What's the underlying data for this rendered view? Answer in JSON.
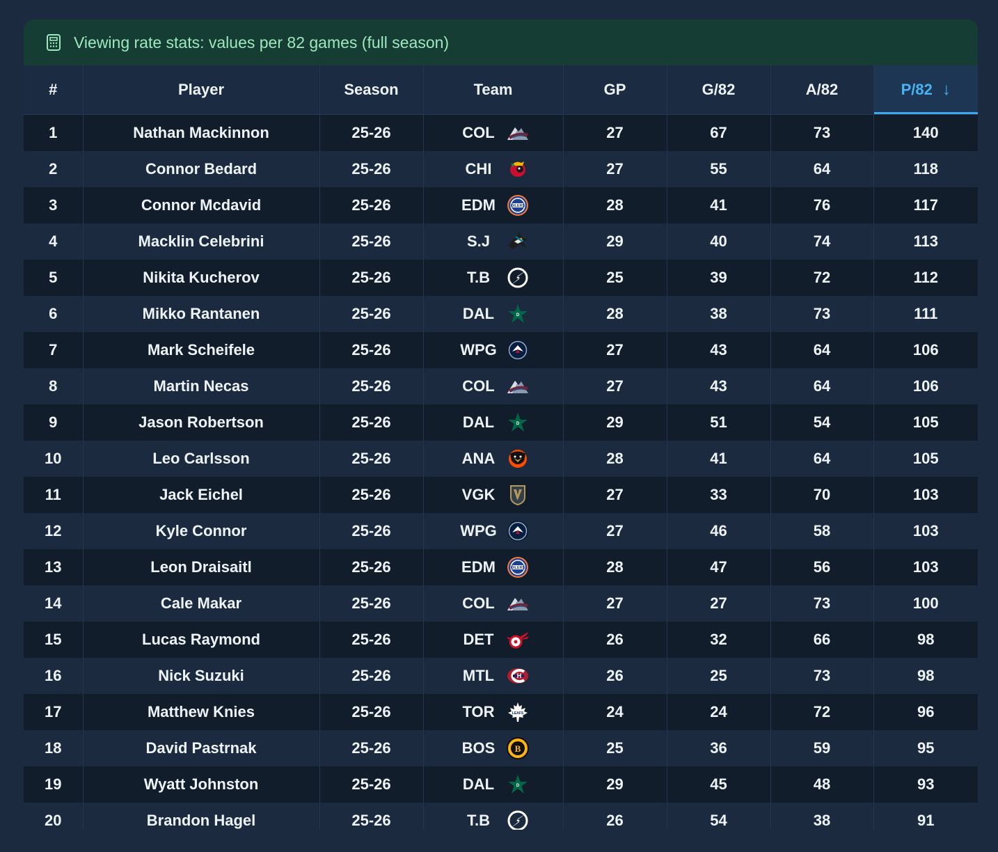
{
  "banner": {
    "icon": "calculator-icon",
    "text": "Viewing rate stats: values per 82 games (full season)"
  },
  "columns": [
    "#",
    "Player",
    "Season",
    "Team",
    "GP",
    "G/82",
    "A/82",
    "P/82"
  ],
  "sort": {
    "column": "P/82",
    "direction": "descending",
    "icon": "arrow-down-icon",
    "accent": "#49b2f0"
  },
  "rows": [
    {
      "rank": "1",
      "player": "Nathan Mackinnon",
      "season": "25-26",
      "team": "COL",
      "gp": "27",
      "g82": "67",
      "a82": "73",
      "p82": "140"
    },
    {
      "rank": "2",
      "player": "Connor Bedard",
      "season": "25-26",
      "team": "CHI",
      "gp": "27",
      "g82": "55",
      "a82": "64",
      "p82": "118"
    },
    {
      "rank": "3",
      "player": "Connor Mcdavid",
      "season": "25-26",
      "team": "EDM",
      "gp": "28",
      "g82": "41",
      "a82": "76",
      "p82": "117"
    },
    {
      "rank": "4",
      "player": "Macklin Celebrini",
      "season": "25-26",
      "team": "S.J",
      "gp": "29",
      "g82": "40",
      "a82": "74",
      "p82": "113"
    },
    {
      "rank": "5",
      "player": "Nikita Kucherov",
      "season": "25-26",
      "team": "T.B",
      "gp": "25",
      "g82": "39",
      "a82": "72",
      "p82": "112"
    },
    {
      "rank": "6",
      "player": "Mikko Rantanen",
      "season": "25-26",
      "team": "DAL",
      "gp": "28",
      "g82": "38",
      "a82": "73",
      "p82": "111"
    },
    {
      "rank": "7",
      "player": "Mark Scheifele",
      "season": "25-26",
      "team": "WPG",
      "gp": "27",
      "g82": "43",
      "a82": "64",
      "p82": "106"
    },
    {
      "rank": "8",
      "player": "Martin Necas",
      "season": "25-26",
      "team": "COL",
      "gp": "27",
      "g82": "43",
      "a82": "64",
      "p82": "106"
    },
    {
      "rank": "9",
      "player": "Jason Robertson",
      "season": "25-26",
      "team": "DAL",
      "gp": "29",
      "g82": "51",
      "a82": "54",
      "p82": "105"
    },
    {
      "rank": "10",
      "player": "Leo Carlsson",
      "season": "25-26",
      "team": "ANA",
      "gp": "28",
      "g82": "41",
      "a82": "64",
      "p82": "105"
    },
    {
      "rank": "11",
      "player": "Jack Eichel",
      "season": "25-26",
      "team": "VGK",
      "gp": "27",
      "g82": "33",
      "a82": "70",
      "p82": "103"
    },
    {
      "rank": "12",
      "player": "Kyle Connor",
      "season": "25-26",
      "team": "WPG",
      "gp": "27",
      "g82": "46",
      "a82": "58",
      "p82": "103"
    },
    {
      "rank": "13",
      "player": "Leon Draisaitl",
      "season": "25-26",
      "team": "EDM",
      "gp": "28",
      "g82": "47",
      "a82": "56",
      "p82": "103"
    },
    {
      "rank": "14",
      "player": "Cale Makar",
      "season": "25-26",
      "team": "COL",
      "gp": "27",
      "g82": "27",
      "a82": "73",
      "p82": "100"
    },
    {
      "rank": "15",
      "player": "Lucas Raymond",
      "season": "25-26",
      "team": "DET",
      "gp": "26",
      "g82": "32",
      "a82": "66",
      "p82": "98"
    },
    {
      "rank": "16",
      "player": "Nick Suzuki",
      "season": "25-26",
      "team": "MTL",
      "gp": "26",
      "g82": "25",
      "a82": "73",
      "p82": "98"
    },
    {
      "rank": "17",
      "player": "Matthew Knies",
      "season": "25-26",
      "team": "TOR",
      "gp": "24",
      "g82": "24",
      "a82": "72",
      "p82": "96"
    },
    {
      "rank": "18",
      "player": "David Pastrnak",
      "season": "25-26",
      "team": "BOS",
      "gp": "25",
      "g82": "36",
      "a82": "59",
      "p82": "95"
    },
    {
      "rank": "19",
      "player": "Wyatt Johnston",
      "season": "25-26",
      "team": "DAL",
      "gp": "29",
      "g82": "45",
      "a82": "48",
      "p82": "93"
    },
    {
      "rank": "20",
      "player": "Brandon Hagel",
      "season": "25-26",
      "team": "T.B",
      "gp": "26",
      "g82": "54",
      "a82": "38",
      "p82": "91"
    }
  ]
}
